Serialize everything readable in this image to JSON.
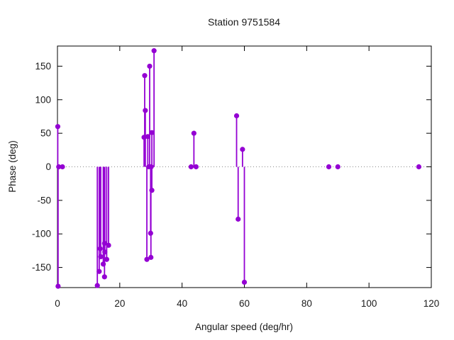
{
  "window": {
    "title": "Station 9751584"
  },
  "colors": {
    "series": "#9400d3",
    "axis": "#000000",
    "zero_line": "#8a8a8a",
    "text": "#1a1a1a",
    "background": "#ffffff"
  },
  "chart_data": {
    "type": "scatter",
    "style": "impulses+points",
    "title": "Station 9751584",
    "xlabel": "Angular speed (deg/hr)",
    "ylabel": "Phase (deg)",
    "xlim": [
      0,
      120
    ],
    "ylim": [
      -180,
      180
    ],
    "xticks": [
      0,
      20,
      40,
      60,
      80,
      100,
      120
    ],
    "yticks": [
      -150,
      -100,
      -50,
      0,
      50,
      100,
      150
    ],
    "grid": false,
    "zero_line": true,
    "legend_position": "none",
    "series_name": "phase",
    "points": [
      [
        0.1,
        60
      ],
      [
        0.2,
        -178
      ],
      [
        0.4,
        0
      ],
      [
        1.6,
        0
      ],
      [
        12.8,
        -177
      ],
      [
        13.4,
        -156
      ],
      [
        13.7,
        -122
      ],
      [
        13.9,
        -134
      ],
      [
        14.7,
        -145
      ],
      [
        15.1,
        -114
      ],
      [
        15.1,
        -164
      ],
      [
        15.2,
        -127
      ],
      [
        15.8,
        -138
      ],
      [
        16.4,
        -117
      ],
      [
        27.8,
        44
      ],
      [
        28.0,
        136
      ],
      [
        28.2,
        84
      ],
      [
        28.7,
        -138
      ],
      [
        29.0,
        45
      ],
      [
        29.3,
        0
      ],
      [
        29.6,
        150
      ],
      [
        29.9,
        -99
      ],
      [
        30.0,
        -135
      ],
      [
        30.1,
        0
      ],
      [
        30.3,
        51
      ],
      [
        30.3,
        -35
      ],
      [
        31.0,
        173
      ],
      [
        42.9,
        0
      ],
      [
        43.8,
        50
      ],
      [
        44.5,
        0
      ],
      [
        57.5,
        76
      ],
      [
        58.0,
        -78
      ],
      [
        59.4,
        26
      ],
      [
        60.0,
        -172
      ],
      [
        87.1,
        0
      ],
      [
        90.0,
        0
      ],
      [
        116.0,
        0
      ]
    ]
  }
}
